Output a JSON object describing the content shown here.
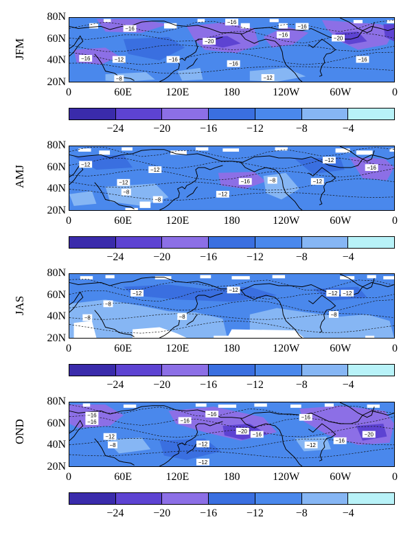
{
  "panels": [
    {
      "season": "JFM",
      "labels": [
        {
          "text": "−16",
          "lon": 67,
          "lat": 70
        },
        {
          "text": "−16",
          "lon": 180,
          "lat": 76
        },
        {
          "text": "−16",
          "lon": 258,
          "lat": 72
        },
        {
          "text": "−16",
          "lon": 237,
          "lat": 64
        },
        {
          "text": "−20",
          "lon": 155,
          "lat": 58
        },
        {
          "text": "−20",
          "lon": 298,
          "lat": 61
        },
        {
          "text": "−16",
          "lon": 18,
          "lat": 42
        },
        {
          "text": "−12",
          "lon": 55,
          "lat": 41
        },
        {
          "text": "−16",
          "lon": 115,
          "lat": 41
        },
        {
          "text": "−16",
          "lon": 182,
          "lat": 37
        },
        {
          "text": "−12",
          "lon": 220,
          "lat": 24
        },
        {
          "text": "−16",
          "lon": 325,
          "lat": 41
        },
        {
          "text": "−8",
          "lon": 55,
          "lat": 23
        }
      ]
    },
    {
      "season": "AMJ",
      "labels": [
        {
          "text": "−12",
          "lon": 18,
          "lat": 63
        },
        {
          "text": "−12",
          "lon": 95,
          "lat": 58
        },
        {
          "text": "−12",
          "lon": 60,
          "lat": 46
        },
        {
          "text": "−8",
          "lon": 63,
          "lat": 37
        },
        {
          "text": "−8",
          "lon": 98,
          "lat": 30
        },
        {
          "text": "−16",
          "lon": 195,
          "lat": 47
        },
        {
          "text": "−12",
          "lon": 170,
          "lat": 35
        },
        {
          "text": "−8",
          "lon": 225,
          "lat": 48
        },
        {
          "text": "−12",
          "lon": 288,
          "lat": 67
        },
        {
          "text": "−16",
          "lon": 335,
          "lat": 60
        },
        {
          "text": "−12",
          "lon": 275,
          "lat": 47
        }
      ]
    },
    {
      "season": "JAS",
      "labels": [
        {
          "text": "−12",
          "lon": 75,
          "lat": 62
        },
        {
          "text": "−8",
          "lon": 43,
          "lat": 52
        },
        {
          "text": "−8",
          "lon": 20,
          "lat": 39
        },
        {
          "text": "−12",
          "lon": 182,
          "lat": 65
        },
        {
          "text": "−8",
          "lon": 125,
          "lat": 40
        },
        {
          "text": "−12",
          "lon": 292,
          "lat": 62
        },
        {
          "text": "−12",
          "lon": 308,
          "lat": 62
        },
        {
          "text": "−8",
          "lon": 293,
          "lat": 42
        }
      ]
    },
    {
      "season": "OND",
      "labels": [
        {
          "text": "−16",
          "lon": 25,
          "lat": 68
        },
        {
          "text": "−16",
          "lon": 25,
          "lat": 62
        },
        {
          "text": "−12",
          "lon": 45,
          "lat": 48
        },
        {
          "text": "−8",
          "lon": 48,
          "lat": 40
        },
        {
          "text": "−16",
          "lon": 128,
          "lat": 63
        },
        {
          "text": "−16",
          "lon": 158,
          "lat": 69
        },
        {
          "text": "−20",
          "lon": 192,
          "lat": 53
        },
        {
          "text": "−16",
          "lon": 208,
          "lat": 50
        },
        {
          "text": "−12",
          "lon": 148,
          "lat": 41
        },
        {
          "text": "−12",
          "lon": 148,
          "lat": 24
        },
        {
          "text": "−16",
          "lon": 262,
          "lat": 66
        },
        {
          "text": "−16",
          "lon": 300,
          "lat": 44
        },
        {
          "text": "−20",
          "lon": 332,
          "lat": 50
        },
        {
          "text": "−12",
          "lon": 268,
          "lat": 40
        }
      ]
    }
  ],
  "lat_ticks": [
    "20N",
    "40N",
    "60N",
    "80N"
  ],
  "lon_ticks": [
    "0",
    "60E",
    "120E",
    "180",
    "120W",
    "60W",
    "0"
  ],
  "colorbar": {
    "labels": [
      "−24",
      "−20",
      "−16",
      "−12",
      "−8",
      "−4"
    ],
    "colors": [
      "#3a2bab",
      "#5d43d2",
      "#8c6fe6",
      "#3a6fe0",
      "#4a88ec",
      "#86b6f4",
      "#b8f2f8"
    ]
  },
  "map_colors": {
    "base": "#4a88ec",
    "light": "#86b6f4",
    "dark": "#3a6fe0",
    "purple": "#8c6fe6",
    "deep": "#5d43d2",
    "missing": "#ffffff"
  }
}
